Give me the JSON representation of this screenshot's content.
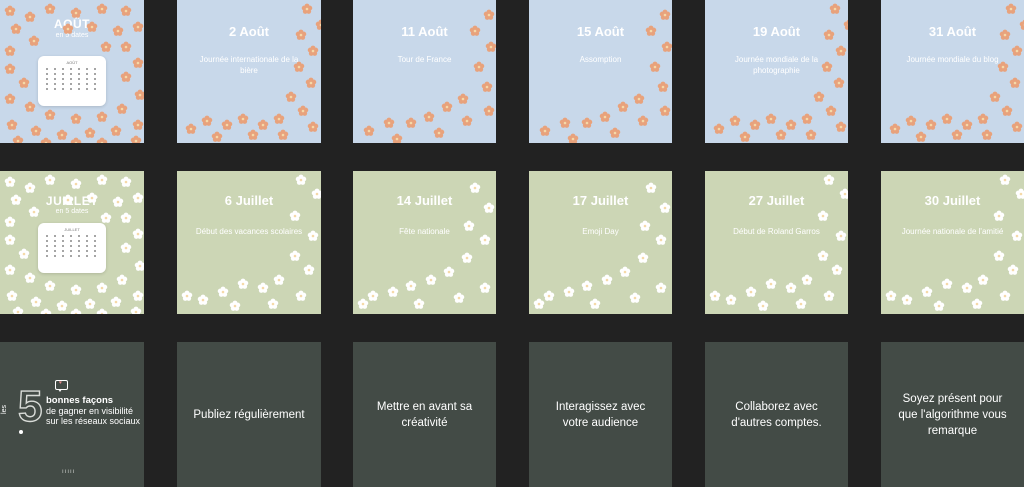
{
  "rows": {
    "august": {
      "cover": {
        "title": "AOÛT",
        "subtitle": "en 5 dates",
        "calendar_header": "AOÛT"
      },
      "tiles": [
        {
          "date": "2 Août",
          "label": "Journée internationale de la bière"
        },
        {
          "date": "11 Août",
          "label": "Tour de France"
        },
        {
          "date": "15 Août",
          "label": "Assomption"
        },
        {
          "date": "19 Août",
          "label": "Journée mondiale de la photographie"
        },
        {
          "date": "31 Août",
          "label": "Journée mondiale du blog"
        }
      ]
    },
    "july": {
      "cover": {
        "title": "JUILLET",
        "subtitle": "en 5 dates",
        "calendar_header": "JUILLET"
      },
      "tiles": [
        {
          "date": "6 Juillet",
          "label": "Début des vacances scolaires"
        },
        {
          "date": "14 Juillet",
          "label": "Fête nationale"
        },
        {
          "date": "17 Juillet",
          "label": "Emoji Day"
        },
        {
          "date": "27 Juillet",
          "label": "Début de Roland Garros"
        },
        {
          "date": "30 Juillet",
          "label": "Journée nationale de l'amitié"
        }
      ]
    },
    "tips": {
      "cover": {
        "les": "les",
        "number": "5",
        "line1": "bonnes façons",
        "line2": "de gagner en visibilité",
        "line3": "sur les réseaux sociaux"
      },
      "tiles": [
        {
          "text": "Publiez régulièrement"
        },
        {
          "text": "Mettre en avant sa créativité"
        },
        {
          "text": "Interagissez avec votre audience"
        },
        {
          "text": "Collaborez avec d'autres comptes."
        },
        {
          "text": "Soyez présent pour que l'algorithme vous remarque"
        }
      ]
    }
  },
  "colors": {
    "background": "#222222",
    "august_tile": "#c8d8ea",
    "july_tile": "#ccd6b5",
    "tips_tile": "#434b46",
    "august_flower": "#e8a27c",
    "july_flower": "#ffffff"
  },
  "icons": {
    "flower": "flower-icon",
    "calendar": "calendar-icon",
    "speech_bubble": "speech-bubble-icon",
    "heart": "heart-icon"
  }
}
